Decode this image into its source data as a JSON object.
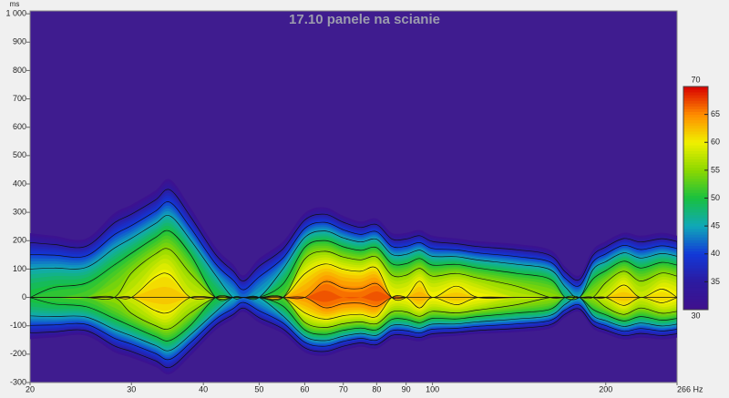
{
  "chart_data": {
    "type": "spectrogram",
    "title": "17.10 panele na scianie",
    "y_label": "ms",
    "x": [
      20,
      22,
      25,
      28,
      30,
      33,
      35,
      38,
      42,
      45,
      47,
      50,
      55,
      60,
      65,
      70,
      75,
      80,
      85,
      90,
      95,
      100,
      110,
      120,
      140,
      160,
      170,
      180,
      190,
      200,
      215,
      230,
      250,
      266
    ],
    "values": [
      50,
      51,
      52,
      55,
      58,
      62,
      62,
      58,
      50,
      45,
      42,
      45,
      52,
      64,
      67,
      66,
      66,
      67,
      60,
      60,
      63,
      60,
      62,
      60,
      57,
      55,
      48,
      45,
      55,
      58,
      62,
      58,
      61,
      60
    ],
    "decay": [
      230,
      220,
      210,
      300,
      330,
      380,
      420,
      320,
      180,
      120,
      80,
      140,
      200,
      300,
      320,
      290,
      270,
      280,
      230,
      230,
      240,
      220,
      210,
      200,
      190,
      170,
      110,
      80,
      170,
      200,
      230,
      220,
      230,
      220
    ],
    "xlim": [
      20,
      266
    ],
    "xscale": "log",
    "xticks": [
      20,
      30,
      40,
      50,
      60,
      70,
      80,
      90,
      100,
      200,
      {
        "value": 266,
        "label": "266 Hz"
      }
    ],
    "ylim": [
      -300,
      1010
    ],
    "yticks": [
      -300,
      -200,
      -100,
      0,
      100,
      200,
      300,
      400,
      500,
      600,
      700,
      800,
      900,
      {
        "value": 1000,
        "label": "1 000"
      }
    ],
    "grid": true,
    "background": "#3f1c8f",
    "colorbar": {
      "lim": [
        30,
        70
      ],
      "ticks": [
        30,
        35,
        40,
        45,
        50,
        55,
        60,
        65,
        70
      ],
      "colors": [
        "#40108c",
        "#2c1aa0",
        "#1238d8",
        "#10a8b8",
        "#18c040",
        "#8cd800",
        "#f0f000",
        "#ff8c00",
        "#d80000"
      ]
    }
  }
}
